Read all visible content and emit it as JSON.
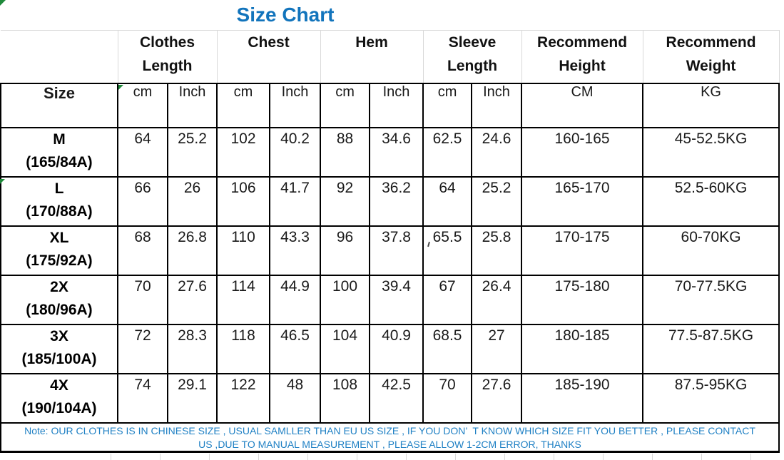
{
  "chart_data": {
    "type": "table",
    "title": "Size Chart",
    "groups": [
      {
        "label": "",
        "span": 1
      },
      {
        "label": "Clothes Length",
        "span": 2
      },
      {
        "label": "Chest",
        "span": 2
      },
      {
        "label": "Hem",
        "span": 2
      },
      {
        "label": "Sleeve Length",
        "span": 2
      },
      {
        "label": "Recommend Height",
        "span": 1
      },
      {
        "label": "Recommend Weight",
        "span": 1
      }
    ],
    "subheader": [
      "Size",
      "cm",
      "Inch",
      "cm",
      "Inch",
      "cm",
      "Inch",
      "cm",
      "Inch",
      "CM",
      "KG"
    ],
    "rows": [
      {
        "size": "M",
        "fit": "(165/84A)",
        "values": [
          "64",
          "25.2",
          "102",
          "40.2",
          "88",
          "34.6",
          "62.5",
          "24.6",
          "160-165",
          "45-52.5KG"
        ]
      },
      {
        "size": "L",
        "fit": "(170/88A)",
        "values": [
          "66",
          "26",
          "106",
          "41.7",
          "92",
          "36.2",
          "64",
          "25.2",
          "165-170",
          "52.5-60KG"
        ]
      },
      {
        "size": "XL",
        "fit": "(175/92A)",
        "values": [
          "68",
          "26.8",
          "110",
          "43.3",
          "96",
          "37.8",
          "65.5",
          "25.8",
          "170-175",
          "60-70KG"
        ]
      },
      {
        "size": "2X",
        "fit": "(180/96A)",
        "values": [
          "70",
          "27.6",
          "114",
          "44.9",
          "100",
          "39.4",
          "67",
          "26.4",
          "175-180",
          "70-77.5KG"
        ]
      },
      {
        "size": "3X",
        "fit": "(185/100A)",
        "values": [
          "72",
          "28.3",
          "118",
          "46.5",
          "104",
          "40.9",
          "68.5",
          "27",
          "180-185",
          "77.5-87.5KG"
        ]
      },
      {
        "size": "4X",
        "fit": "(190/104A)",
        "values": [
          "74",
          "29.1",
          "122",
          "48",
          "108",
          "42.5",
          "70",
          "27.6",
          "185-190",
          "87.5-95KG"
        ]
      }
    ],
    "note_line1": "Note: OUR CLOTHES IS IN CHINESE SIZE , USUAL SAMLLER THAN EU US SIZE , IF YOU DON’  T KNOW WHICH SIZE FIT YOU BETTER , PLEASE CONTACT",
    "note_line2": "US ,DUE TO MANUAL MEASUREMENT , PLEASE ALLOW 1-2CM ERROR, THANKS",
    "layout_hints": {
      "grid": "black 2px cell borders; light gray group header grid",
      "note_position": "bottom, full width"
    }
  },
  "colors": {
    "title_blue": "#1274BC",
    "note_blue": "#1F80C4",
    "border_black": "#000000",
    "grid_gray": "#D9D9D9",
    "excel_green": "#1F8A3B"
  },
  "icons": {
    "excel_error_indicator": "green corner triangle"
  }
}
